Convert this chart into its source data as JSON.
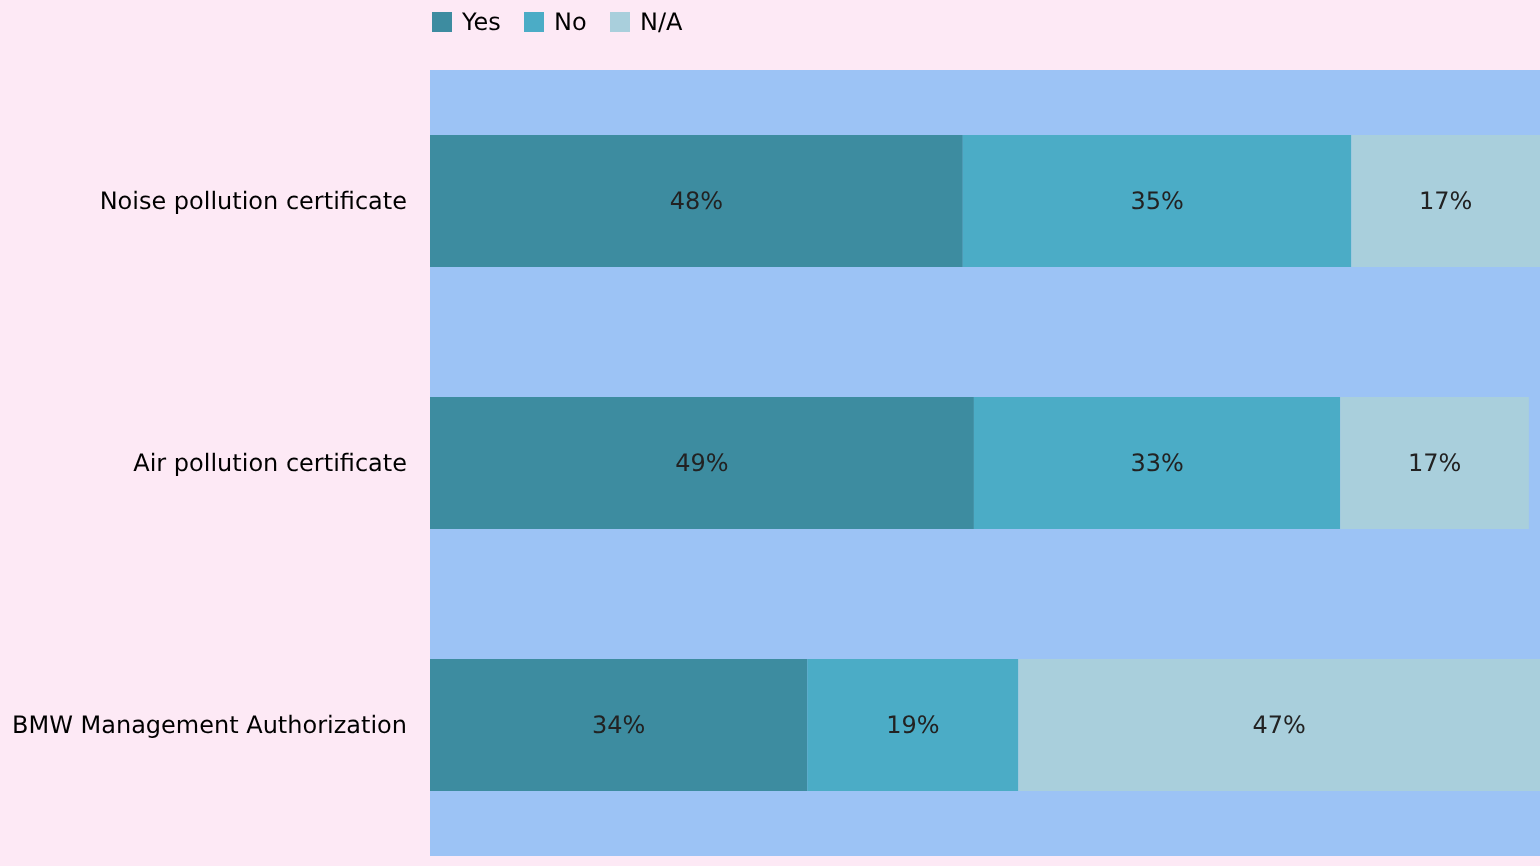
{
  "chart_data": {
    "type": "bar",
    "orientation": "horizontal",
    "stacked": true,
    "legend": "top",
    "grid": false,
    "tick_labels": "y",
    "categories": [
      "Noise pollution certificate",
      "Air pollution certificate",
      "BMW Management Authorization"
    ],
    "series": [
      {
        "name": "Yes",
        "color": "#3d8ca0",
        "values": [
          48,
          49,
          34
        ],
        "value_labels": [
          "48%",
          "49%",
          "34%"
        ]
      },
      {
        "name": "No",
        "color": "#4bacc6",
        "values": [
          35,
          33,
          19
        ],
        "value_labels": [
          "35%",
          "33%",
          "19%"
        ]
      },
      {
        "name": "N/A",
        "color": "#a9cfdc",
        "values": [
          17,
          17,
          47
        ],
        "value_labels": [
          "17%",
          "17%",
          "47%"
        ]
      }
    ]
  }
}
